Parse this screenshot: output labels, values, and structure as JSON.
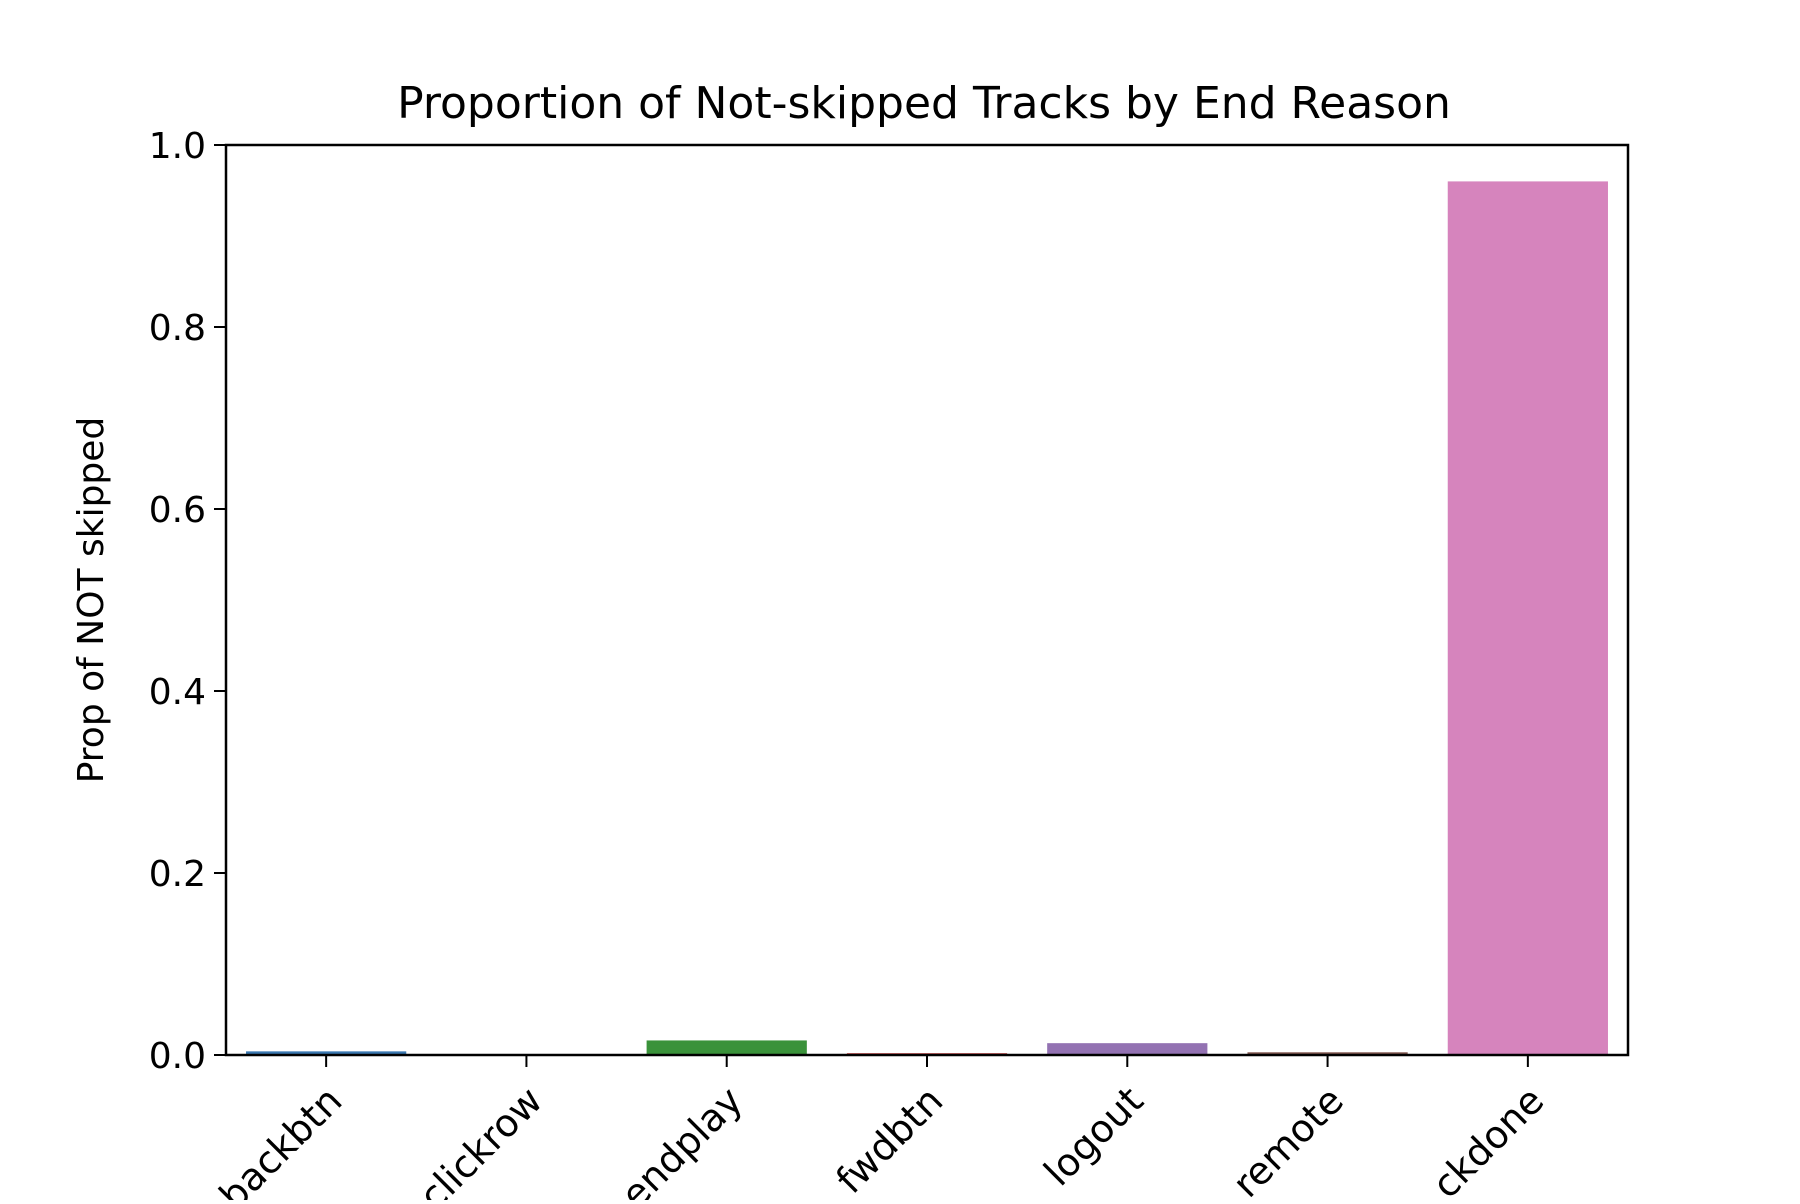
{
  "chart_data": {
    "type": "bar",
    "title": "Proportion of Not-skipped Tracks by End Reason",
    "xlabel": "",
    "ylabel": "Prop of NOT skipped",
    "categories": [
      "backbtn",
      "clickrow",
      "endplay",
      "fwdbtn",
      "logout",
      "remote",
      "trackdone"
    ],
    "visible_tick_labels": [
      "backbtn",
      "clickrow",
      "endplay",
      "fwdbtn",
      "logout",
      "remote",
      "ckdone"
    ],
    "values": [
      0.004,
      0.0,
      0.016,
      0.002,
      0.013,
      0.003,
      0.96
    ],
    "colors": [
      "#3a78b1",
      "#e1812c",
      "#3a923a",
      "#c03d3e",
      "#9372b2",
      "#845b53",
      "#d684bd"
    ],
    "ylim": [
      0,
      1.0
    ],
    "yticks": [
      0.0,
      0.2,
      0.4,
      0.6,
      0.8,
      1.0
    ],
    "ytick_labels": [
      "0.0",
      "0.2",
      "0.4",
      "0.6",
      "0.8",
      "1.0"
    ],
    "grid": false,
    "legend": "none"
  }
}
